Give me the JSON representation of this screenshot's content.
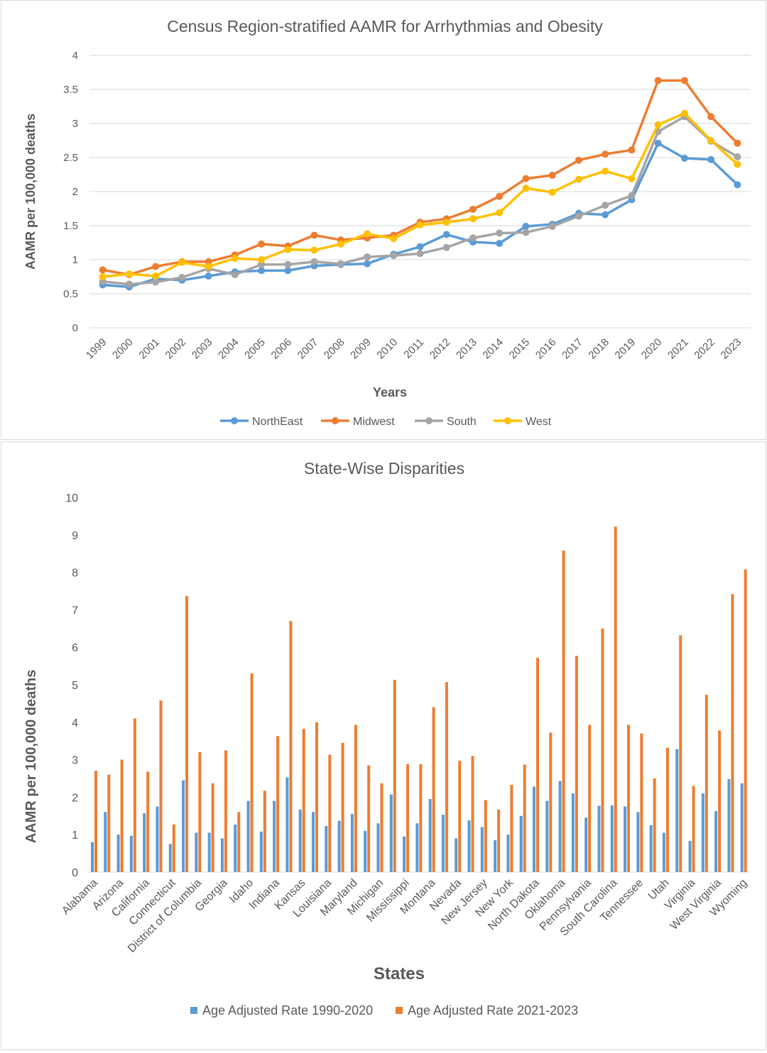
{
  "chart_data": [
    {
      "type": "line",
      "title": "Census Region-stratified AAMR for Arrhythmias and Obesity",
      "xlabel": "Years",
      "ylabel": "AAMR per 100,000 deaths",
      "ylim": [
        0,
        4
      ],
      "yticks": [
        "0",
        "0.5",
        "1",
        "1.5",
        "2",
        "2.5",
        "3",
        "3.5",
        "4"
      ],
      "grid": true,
      "legend": "bottom",
      "x": [
        "1999",
        "2000",
        "2001",
        "2002",
        "2003",
        "2004",
        "2005",
        "2006",
        "2007",
        "2008",
        "2009",
        "2010",
        "2011",
        "2012",
        "2013",
        "2014",
        "2015",
        "2016",
        "2017",
        "2018",
        "2019",
        "2020",
        "2021",
        "2022",
        "2023"
      ],
      "series": [
        {
          "name": "NorthEast",
          "color": "#5B9BD5",
          "values": [
            0.63,
            0.6,
            0.72,
            0.7,
            0.76,
            0.82,
            0.84,
            0.84,
            0.91,
            0.93,
            0.94,
            1.08,
            1.19,
            1.37,
            1.26,
            1.24,
            1.49,
            1.52,
            1.68,
            1.66,
            1.88,
            2.71,
            2.49,
            2.47,
            2.1
          ]
        },
        {
          "name": "Midwest",
          "color": "#ED7D31",
          "values": [
            0.85,
            0.78,
            0.9,
            0.97,
            0.97,
            1.07,
            1.23,
            1.2,
            1.36,
            1.29,
            1.32,
            1.36,
            1.55,
            1.6,
            1.74,
            1.93,
            2.19,
            2.24,
            2.46,
            2.55,
            2.61,
            3.63,
            3.63,
            3.1,
            2.71
          ]
        },
        {
          "name": "South",
          "color": "#A5A5A5",
          "values": [
            0.68,
            0.64,
            0.67,
            0.74,
            0.87,
            0.78,
            0.93,
            0.93,
            0.97,
            0.94,
            1.04,
            1.06,
            1.09,
            1.18,
            1.32,
            1.39,
            1.4,
            1.49,
            1.64,
            1.8,
            1.94,
            2.88,
            3.1,
            2.74,
            2.51
          ]
        },
        {
          "name": "West",
          "color": "#FFC000",
          "values": [
            0.75,
            0.79,
            0.76,
            0.96,
            0.9,
            1.02,
            1.0,
            1.15,
            1.14,
            1.23,
            1.38,
            1.31,
            1.51,
            1.55,
            1.6,
            1.69,
            2.05,
            1.99,
            2.18,
            2.3,
            2.19,
            2.98,
            3.15,
            2.75,
            2.4
          ]
        }
      ]
    },
    {
      "type": "bar",
      "title": "State-Wise Disparities",
      "xlabel": "States",
      "ylabel": "AAMR per 100,000 deaths",
      "ylim": [
        0,
        10
      ],
      "yticks": [
        "0",
        "1",
        "2",
        "3",
        "4",
        "5",
        "6",
        "7",
        "8",
        "9",
        "10"
      ],
      "grid": false,
      "legend": "bottom",
      "tick_labels": [
        "Alabama",
        "Arizona",
        "California",
        "Connecticut",
        "District of Columbia",
        "Georgia",
        "Idaho",
        "Indiana",
        "Kansas",
        "Louisiana",
        "Maryland",
        "Michigan",
        "Mississippi",
        "Montana",
        "Nevada",
        "New Jersey",
        "New York",
        "North Dakota",
        "Oklahoma",
        "Pennsylvania",
        "South Carolina",
        "Tennessee",
        "Utah",
        "Virginia",
        "West Virginia",
        "Wyoming"
      ],
      "series": [
        {
          "name": "Age Adjusted Rate 1990-2020",
          "color": "#5B9BD5",
          "values": [
            0.8,
            1.6,
            1.0,
            0.97,
            1.57,
            1.75,
            0.75,
            2.45,
            1.05,
            1.05,
            0.9,
            1.27,
            1.9,
            1.08,
            1.9,
            2.53,
            1.67,
            1.6,
            1.23,
            1.37,
            1.55,
            1.1,
            1.3,
            2.07,
            0.95,
            1.3,
            1.95,
            1.53,
            0.9,
            1.38,
            1.2,
            0.85,
            1.0,
            1.5,
            2.28,
            1.9,
            2.43,
            2.1,
            1.45,
            1.77,
            1.78,
            1.75,
            1.6,
            1.25,
            1.05,
            3.28,
            0.83,
            2.1,
            1.63,
            2.48,
            2.37
          ]
        },
        {
          "name": "Age Adjusted Rate 2021-2023",
          "color": "#ED7D31",
          "values": [
            2.7,
            2.6,
            3.0,
            4.1,
            2.68,
            4.58,
            1.27,
            7.37,
            3.2,
            2.37,
            3.25,
            1.6,
            5.3,
            2.17,
            3.63,
            6.7,
            3.82,
            4.0,
            3.13,
            3.45,
            3.93,
            2.85,
            2.37,
            5.13,
            2.88,
            2.88,
            4.4,
            5.07,
            2.97,
            3.1,
            1.92,
            1.67,
            2.33,
            2.87,
            5.72,
            3.72,
            8.58,
            5.77,
            3.93,
            6.5,
            9.22,
            3.93,
            3.7,
            2.5,
            3.32,
            6.32,
            2.3,
            4.73,
            3.78,
            7.42,
            8.08
          ]
        }
      ]
    }
  ]
}
